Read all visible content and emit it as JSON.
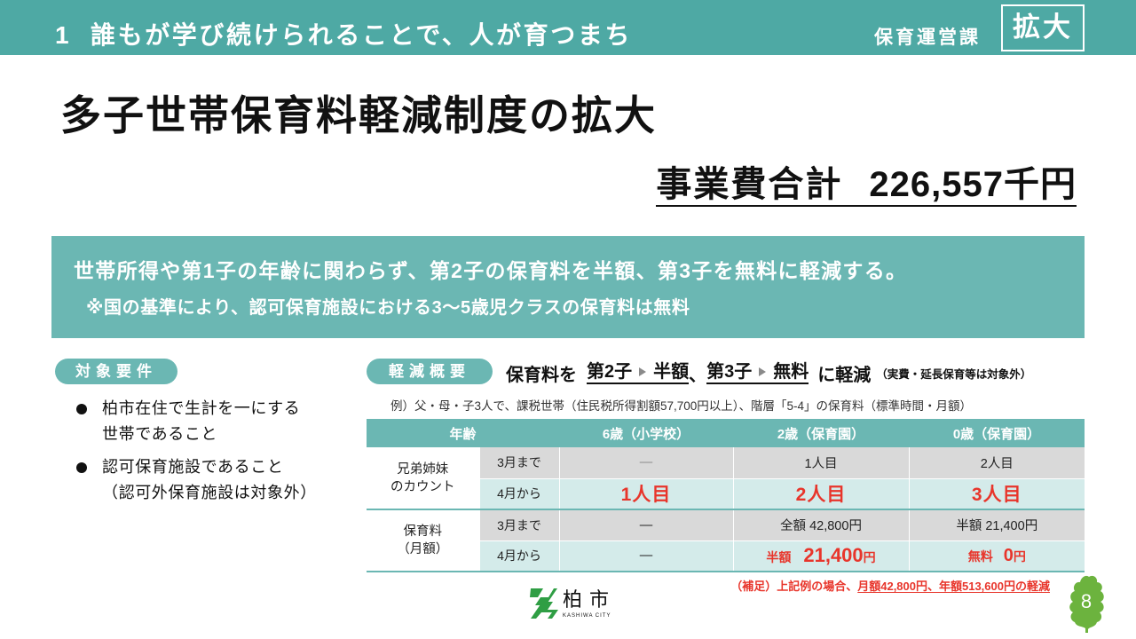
{
  "colors": {
    "header_bg": "#4ea9a4",
    "accent": "#6bb7b3",
    "emphasis_red": "#e8352b",
    "row_until_march": "#d9d9d9",
    "row_from_april": "#d4ebea",
    "page_leaf": "#6cb33e",
    "logo_green": "#2f9e44"
  },
  "header": {
    "section_number": "1",
    "section_title": "誰もが学び続けられることで、人が育つまち",
    "department": "保育運営課",
    "badge": "拡大"
  },
  "title": "多子世帯保育料軽減制度の拡大",
  "budget": {
    "label": "事業費合計",
    "amount": "226,557千円"
  },
  "summary": {
    "main": "世帯所得や第1子の年齢に関わらず、第2子の保育料を半額、第3子を無料に軽減する。",
    "note": "※国の基準により、認可保育施設における3～5歳児クラスの保育料は無料"
  },
  "eligibility": {
    "label": "対象要件",
    "items": [
      {
        "lines": [
          "柏市在住で生計を一にする",
          "世帯であること"
        ]
      },
      {
        "lines": [
          "認可保育施設であること",
          "（認可外保育施設は対象外）"
        ]
      }
    ]
  },
  "reduction": {
    "label": "軽減概要",
    "lead": "保育料を",
    "second_child": "第2子",
    "second_result": "半額",
    "separator": "、",
    "third_child": "第3子",
    "third_result": "無料",
    "tail": "に軽減",
    "note": "（実費・延長保育等は対象外）",
    "example": "例）父・母・子3人で、課税世帯（住民税所得割額57,700円以上）、階層「5-4」の保育料（標準時間・月額）"
  },
  "table": {
    "headers": [
      "年齢",
      "6歳（小学校）",
      "2歳（保育園）",
      "0歳（保育園）"
    ],
    "groups": [
      {
        "label_lines": [
          "兄弟姉妹",
          "のカウント"
        ],
        "rows": [
          {
            "period": "3月まで",
            "cells": [
              "—",
              "1人目",
              "2人目"
            ]
          },
          {
            "period": "4月から",
            "cells": [
              "1人目",
              "2人目",
              "3人目"
            ]
          }
        ]
      },
      {
        "label_lines": [
          "保育料",
          "（月額）"
        ],
        "rows": [
          {
            "period": "3月まで",
            "cells": [
              "—",
              "全額 42,800円",
              "半額 21,400円"
            ]
          },
          {
            "period": "4月から",
            "cells": [
              "—",
              {
                "prefix": "半額",
                "amount": "21,400",
                "unit": "円"
              },
              {
                "prefix": "無料",
                "amount": "0",
                "unit": "円"
              }
            ]
          }
        ]
      }
    ]
  },
  "footnote": {
    "prefix": "（補足）上記例の場合、",
    "emphasis": "月額42,800円、年額513,600円の軽減"
  },
  "logo": {
    "name": "柏市",
    "sub": "KASHIWA CITY"
  },
  "page_number": "8"
}
